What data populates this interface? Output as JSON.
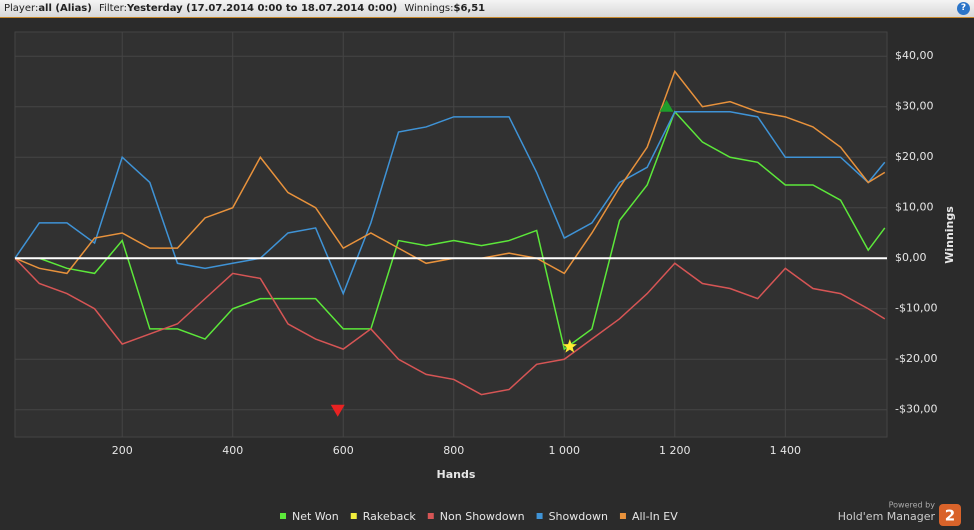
{
  "header": {
    "player_label": "Player:",
    "player": "all (Alias)",
    "filter_label": "Filter:",
    "filter": "Yesterday (17.07.2014 0:00 to 18.07.2014 0:00)",
    "winnings_label": "Winnings:",
    "winnings": "$6,51",
    "help": "?"
  },
  "footer": {
    "powered_by": "Powered by",
    "brand": "Hold'em Manager",
    "brand_version": "2"
  },
  "chart_data": {
    "type": "line",
    "x_label": "Hands",
    "y_label": "Winnings",
    "x": [
      6,
      50,
      100,
      150,
      200,
      250,
      300,
      350,
      400,
      450,
      500,
      550,
      600,
      650,
      700,
      750,
      800,
      850,
      900,
      950,
      1000,
      1050,
      1100,
      1150,
      1200,
      1250,
      1300,
      1350,
      1400,
      1450,
      1500,
      1550,
      1580
    ],
    "series": [
      {
        "name": "Net Won",
        "color": "#5ce83a",
        "values": [
          0,
          0,
          -2,
          -3,
          3.5,
          -14,
          -14,
          -16,
          -10,
          -8,
          -8,
          -8,
          -14,
          -14,
          3.5,
          2.5,
          3.5,
          2.5,
          3.5,
          5.5,
          -18,
          -14,
          7.5,
          14.5,
          29,
          23,
          20,
          19,
          14.5,
          14.5,
          11.5,
          1.6,
          6
        ]
      },
      {
        "name": "Rakeback",
        "color": "#f2ee3c",
        "values": [
          0,
          0,
          0,
          0,
          0,
          0,
          0,
          0,
          0,
          0,
          0,
          0,
          0,
          0,
          0,
          0,
          0,
          0,
          0,
          0,
          0,
          0,
          0,
          0,
          0,
          0,
          0,
          0,
          0,
          0,
          0,
          0,
          0
        ]
      },
      {
        "name": "Non Showdown",
        "color": "#d65555",
        "values": [
          0,
          -5,
          -7,
          -10,
          -17,
          -15,
          -13,
          -8,
          -3,
          -4,
          -13,
          -16,
          -18,
          -14,
          -20,
          -23,
          -24,
          -27,
          -26,
          -21,
          -20,
          -16,
          -12,
          -7,
          -1,
          -5,
          -6,
          -8,
          -2,
          -6,
          -7,
          -10,
          -12
        ]
      },
      {
        "name": "Showdown",
        "color": "#3f93d6",
        "values": [
          0,
          7,
          7,
          3,
          20,
          15,
          -1,
          -2,
          -1,
          0,
          5,
          6,
          -7,
          7,
          25,
          26,
          28,
          28,
          28,
          17,
          4,
          7,
          15,
          18,
          29,
          29,
          29,
          28,
          20,
          20,
          20,
          15,
          19
        ]
      },
      {
        "name": "All-In EV",
        "color": "#e8923c",
        "values": [
          0,
          -2,
          -3,
          4,
          5,
          2,
          2,
          8,
          10,
          20,
          13,
          10,
          2,
          5,
          2,
          -1,
          0,
          0,
          1,
          0,
          -3,
          5,
          14,
          22,
          37,
          30,
          31,
          29,
          28,
          26,
          22,
          15,
          17
        ]
      }
    ],
    "markers": [
      {
        "x": 1185,
        "y": 30,
        "shape": "triangle-up",
        "color": "#1e9e2a"
      },
      {
        "x": 590,
        "y": -30,
        "shape": "triangle-down",
        "color": "#e82222"
      },
      {
        "x": 1010,
        "y": -17.5,
        "shape": "star",
        "color": "#ffee33"
      }
    ],
    "xlim": [
      6,
      1584
    ],
    "ylim": [
      -35.4,
      44.8
    ],
    "xticks": [
      200,
      400,
      600,
      800,
      {
        "value": 1000,
        "label": "1 000"
      },
      {
        "value": 1200,
        "label": "1 200"
      },
      {
        "value": 1400,
        "label": "1 400"
      }
    ],
    "yticks": [
      {
        "value": -30,
        "label": "-$30,00"
      },
      {
        "value": -20,
        "label": "-$20,00"
      },
      {
        "value": -10,
        "label": "-$10,00"
      },
      {
        "value": 0,
        "label": "$0,00"
      },
      {
        "value": 10,
        "label": "$10,00"
      },
      {
        "value": 20,
        "label": "$20,00"
      },
      {
        "value": 30,
        "label": "$30,00"
      },
      {
        "value": 40,
        "label": "$40,00"
      }
    ],
    "grid": true
  }
}
